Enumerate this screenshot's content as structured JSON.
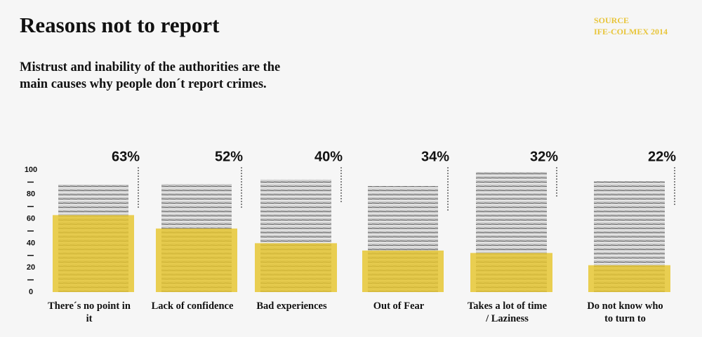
{
  "chart_data": {
    "type": "bar",
    "title": "Reasons not to report",
    "subtitle": "Mistrust and inability of the authorities are the main causes why people don´t report crimes.",
    "source_label": "SOURCE",
    "source": "IFE-COLMEX 2014",
    "categories": [
      "There´s no point in it",
      "Lack of confidence",
      "Bad experiences",
      "Out of Fear",
      "Takes a lot of time / Laziness",
      "Do not know who to turn to"
    ],
    "values": [
      63,
      52,
      40,
      34,
      32,
      22
    ],
    "value_labels": [
      "63%",
      "52%",
      "40%",
      "34%",
      "32%",
      "22%"
    ],
    "color": "#e5c52c",
    "ylim": [
      0,
      100
    ],
    "yticks": [
      0,
      20,
      40,
      60,
      80,
      100
    ],
    "minor_yticks": [
      10,
      30,
      50,
      70,
      90
    ]
  }
}
